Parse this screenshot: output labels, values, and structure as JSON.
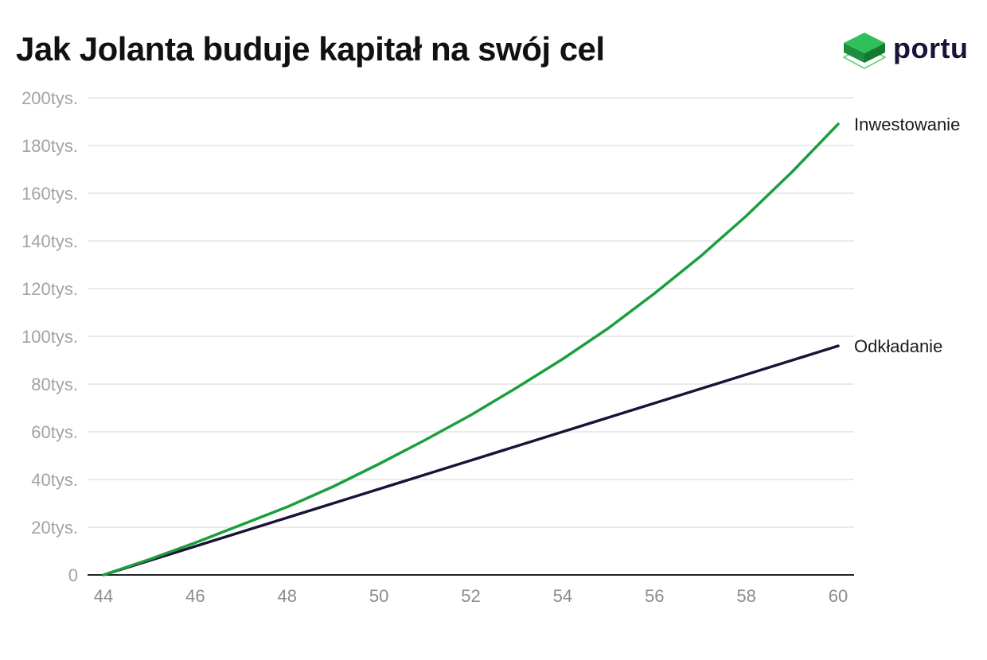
{
  "header": {
    "title": "Jak Jolanta buduje kapitał na swój cel",
    "logo_text": "portu"
  },
  "colors": {
    "brand_green": "#1b9e3e",
    "brand_dark": "#1c1136"
  },
  "chart_data": {
    "type": "line",
    "title": "Jak Jolanta buduje kapitał na swój cel",
    "x": [
      44,
      45,
      46,
      47,
      48,
      49,
      50,
      51,
      52,
      53,
      54,
      55,
      56,
      57,
      58,
      59,
      60
    ],
    "series": [
      {
        "name": "Inwestowanie",
        "color": "#1b9e3e",
        "values": [
          0,
          6500,
          13500,
          21000,
          28500,
          37000,
          46500,
          56500,
          67000,
          78500,
          90500,
          103500,
          118000,
          133500,
          150500,
          169000,
          189000
        ]
      },
      {
        "name": "Odkładanie",
        "color": "#1c1136",
        "values": [
          0,
          6000,
          12000,
          18000,
          24000,
          30000,
          36000,
          42000,
          48000,
          54000,
          60000,
          66000,
          72000,
          78000,
          84000,
          90000,
          96000
        ]
      }
    ],
    "x_ticks": [
      "44",
      "46",
      "48",
      "50",
      "52",
      "54",
      "56",
      "58",
      "60"
    ],
    "x_tick_values": [
      44,
      46,
      48,
      50,
      52,
      54,
      56,
      58,
      60
    ],
    "y_ticks": [
      "0",
      "20tys.",
      "40tys.",
      "60tys.",
      "80tys.",
      "100tys.",
      "120tys.",
      "140tys.",
      "160tys.",
      "180tys.",
      "200tys."
    ],
    "y_tick_values": [
      0,
      20000,
      40000,
      60000,
      80000,
      100000,
      120000,
      140000,
      160000,
      180000,
      200000
    ],
    "xlim": [
      44,
      60
    ],
    "ylim": [
      0,
      200000
    ],
    "xlabel": "",
    "ylabel": "",
    "grid": true,
    "legend": "direct labels at line ends"
  }
}
